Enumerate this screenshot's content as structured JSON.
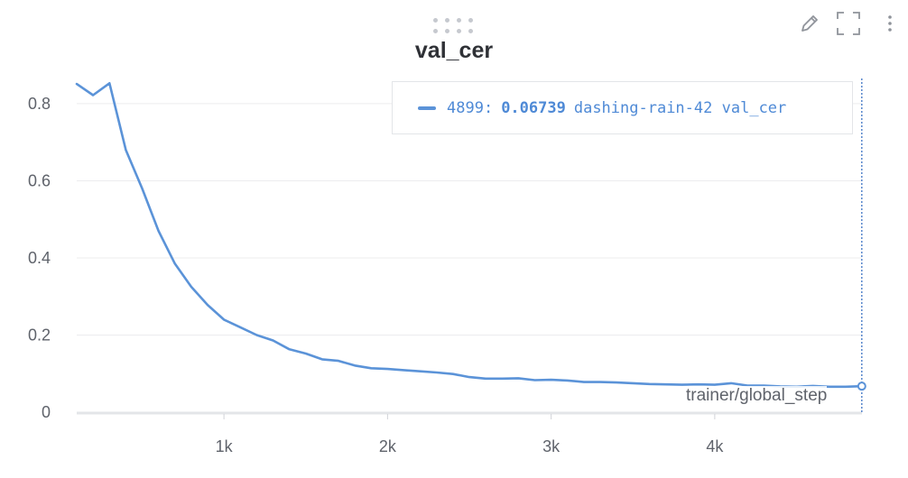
{
  "panel": {
    "title": "val_cer",
    "toolbar": {
      "edit_icon": "pencil-icon",
      "expand_icon": "fullscreen-icon",
      "menu_icon": "more-vertical-icon"
    }
  },
  "legend": {
    "step": "4899:",
    "value": "0.06739",
    "run_name": "dashing-rain-42",
    "metric": "val_cer",
    "color": "#5b93d8"
  },
  "chart_data": {
    "type": "line",
    "title": "val_cer",
    "xlabel": "trainer/global_step",
    "ylabel": "",
    "xlim": [
      100,
      4900
    ],
    "ylim": [
      0,
      0.87
    ],
    "yticks": [
      0,
      0.2,
      0.4,
      0.6,
      0.8
    ],
    "ytick_labels": [
      "0",
      "0.2",
      "0.4",
      "0.6",
      "0.8"
    ],
    "xticks": [
      1000,
      2000,
      3000,
      4000
    ],
    "xtick_labels": [
      "1k",
      "2k",
      "3k",
      "4k"
    ],
    "grid": true,
    "hover_step": 4899,
    "series": [
      {
        "name": "dashing-rain-42",
        "color": "#5b93d8",
        "x": [
          100,
          200,
          300,
          400,
          500,
          600,
          700,
          800,
          900,
          1000,
          1100,
          1200,
          1300,
          1400,
          1500,
          1600,
          1700,
          1800,
          1900,
          2000,
          2100,
          2200,
          2300,
          2400,
          2500,
          2600,
          2700,
          2800,
          2900,
          3000,
          3100,
          3200,
          3300,
          3400,
          3500,
          3600,
          3700,
          3800,
          3900,
          4000,
          4100,
          4200,
          4300,
          4400,
          4500,
          4600,
          4700,
          4800,
          4899
        ],
        "y": [
          0.851,
          0.822,
          0.853,
          0.68,
          0.58,
          0.47,
          0.385,
          0.325,
          0.278,
          0.24,
          0.22,
          0.2,
          0.186,
          0.163,
          0.152,
          0.137,
          0.133,
          0.121,
          0.114,
          0.112,
          0.109,
          0.106,
          0.103,
          0.099,
          0.091,
          0.087,
          0.087,
          0.088,
          0.083,
          0.084,
          0.082,
          0.078,
          0.078,
          0.077,
          0.075,
          0.073,
          0.072,
          0.071,
          0.072,
          0.071,
          0.075,
          0.069,
          0.069,
          0.067,
          0.066,
          0.068,
          0.066,
          0.066,
          0.06739
        ]
      }
    ]
  }
}
